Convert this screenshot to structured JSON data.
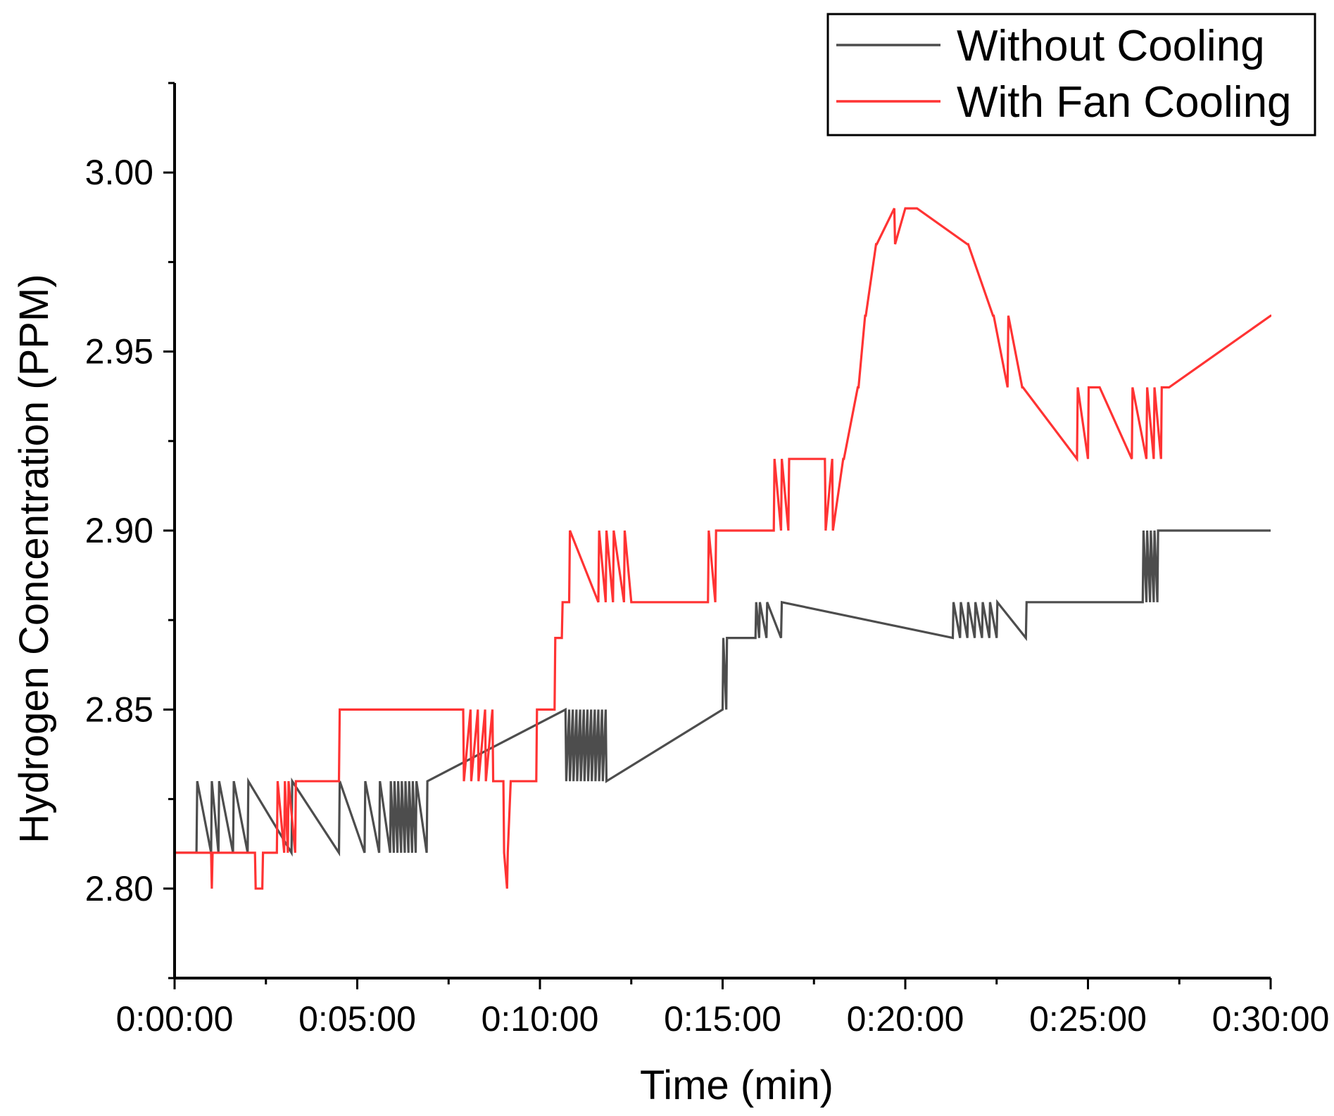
{
  "chart_data": {
    "type": "line",
    "title": "",
    "xlabel": "Time (min)",
    "ylabel": "Hydrogen Concentration (PPM)",
    "xlim": [
      0,
      30
    ],
    "ylim": [
      2.775,
      3.025
    ],
    "x_ticks": [
      0,
      5,
      10,
      15,
      20,
      25,
      30
    ],
    "x_tick_labels": [
      "0:00:00",
      "0:05:00",
      "0:10:00",
      "0:15:00",
      "0:20:00",
      "0:25:00",
      "0:30:00"
    ],
    "y_ticks": [
      2.8,
      2.85,
      2.9,
      2.95,
      3.0
    ],
    "y_tick_labels": [
      "2.80",
      "2.85",
      "2.90",
      "2.95",
      "3.00"
    ],
    "grid": false,
    "legend_position": "top-right",
    "series": [
      {
        "name": "Without Cooling",
        "color": "#4d4d4d",
        "x": [
          0,
          0.6,
          0.62,
          1.0,
          1.02,
          1.2,
          1.22,
          1.6,
          1.62,
          2.0,
          2.02,
          3.2,
          3.22,
          4.5,
          4.52,
          5.2,
          5.22,
          5.6,
          5.62,
          5.9,
          5.92,
          6.0,
          6.02,
          6.1,
          6.12,
          6.2,
          6.22,
          6.3,
          6.32,
          6.4,
          6.42,
          6.5,
          6.52,
          6.6,
          6.62,
          6.9,
          6.92,
          10.7,
          10.72,
          10.8,
          10.82,
          10.9,
          10.92,
          11.0,
          11.02,
          11.1,
          11.12,
          11.2,
          11.22,
          11.3,
          11.32,
          11.4,
          11.42,
          11.5,
          11.52,
          11.6,
          11.62,
          11.7,
          11.72,
          11.8,
          11.82,
          15.0,
          15.02,
          15.1,
          15.12,
          15.9,
          15.92,
          16.0,
          16.02,
          16.2,
          16.22,
          16.6,
          16.62,
          21.3,
          21.32,
          21.5,
          21.52,
          21.7,
          21.72,
          21.9,
          21.92,
          22.1,
          22.12,
          22.3,
          22.32,
          22.5,
          22.52,
          23.3,
          23.32,
          26.5,
          26.52,
          26.6,
          26.62,
          26.7,
          26.72,
          26.8,
          26.82,
          26.9,
          26.92,
          30.0
        ],
        "y": [
          2.81,
          2.81,
          2.83,
          2.81,
          2.83,
          2.81,
          2.83,
          2.81,
          2.83,
          2.81,
          2.83,
          2.81,
          2.83,
          2.81,
          2.83,
          2.81,
          2.83,
          2.81,
          2.83,
          2.81,
          2.83,
          2.81,
          2.83,
          2.81,
          2.83,
          2.81,
          2.83,
          2.81,
          2.83,
          2.81,
          2.83,
          2.81,
          2.83,
          2.81,
          2.83,
          2.81,
          2.83,
          2.85,
          2.83,
          2.85,
          2.83,
          2.85,
          2.83,
          2.85,
          2.83,
          2.85,
          2.83,
          2.85,
          2.83,
          2.85,
          2.83,
          2.85,
          2.83,
          2.85,
          2.83,
          2.85,
          2.83,
          2.85,
          2.83,
          2.85,
          2.83,
          2.85,
          2.87,
          2.85,
          2.87,
          2.87,
          2.88,
          2.87,
          2.88,
          2.87,
          2.88,
          2.87,
          2.88,
          2.87,
          2.88,
          2.87,
          2.88,
          2.87,
          2.88,
          2.87,
          2.88,
          2.87,
          2.88,
          2.87,
          2.88,
          2.87,
          2.88,
          2.87,
          2.88,
          2.88,
          2.9,
          2.88,
          2.9,
          2.88,
          2.9,
          2.88,
          2.9,
          2.88,
          2.9,
          2.9
        ]
      },
      {
        "name": "With Fan Cooling",
        "color": "#ff3333",
        "x": [
          0,
          1.0,
          1.02,
          1.04,
          2.2,
          2.22,
          2.4,
          2.42,
          2.8,
          2.82,
          3.0,
          3.02,
          3.1,
          3.12,
          3.3,
          3.32,
          4.5,
          4.52,
          7.9,
          7.92,
          8.1,
          8.12,
          8.3,
          8.32,
          8.5,
          8.52,
          8.7,
          8.72,
          9.0,
          9.02,
          9.1,
          9.12,
          9.2,
          9.9,
          9.92,
          10.4,
          10.42,
          10.6,
          10.62,
          10.8,
          10.82,
          11.6,
          11.62,
          11.8,
          11.82,
          12.0,
          12.02,
          12.3,
          12.32,
          12.5,
          12.52,
          12.8,
          12.82,
          14.6,
          14.62,
          14.8,
          14.82,
          16.4,
          16.42,
          16.6,
          16.62,
          16.8,
          16.82,
          17.8,
          17.82,
          18.0,
          18.02,
          18.3,
          18.32,
          18.7,
          18.72,
          18.9,
          18.92,
          19.2,
          19.22,
          19.7,
          19.72,
          20.0,
          20.02,
          20.3,
          20.32,
          21.7,
          21.72,
          22.4,
          22.42,
          22.8,
          22.82,
          23.2,
          23.22,
          24.7,
          24.72,
          25.0,
          25.02,
          25.3,
          25.32,
          26.2,
          26.22,
          26.6,
          26.62,
          26.8,
          26.82,
          27.0,
          27.02,
          27.2,
          27.22,
          30.0,
          30.02
        ],
        "y": [
          2.81,
          2.81,
          2.8,
          2.81,
          2.81,
          2.8,
          2.8,
          2.81,
          2.81,
          2.83,
          2.81,
          2.83,
          2.81,
          2.83,
          2.81,
          2.83,
          2.83,
          2.85,
          2.85,
          2.83,
          2.85,
          2.83,
          2.85,
          2.83,
          2.85,
          2.83,
          2.85,
          2.83,
          2.83,
          2.81,
          2.8,
          2.81,
          2.83,
          2.83,
          2.85,
          2.85,
          2.87,
          2.87,
          2.88,
          2.88,
          2.9,
          2.88,
          2.9,
          2.88,
          2.9,
          2.88,
          2.9,
          2.88,
          2.9,
          2.88,
          2.88,
          2.88,
          2.88,
          2.88,
          2.9,
          2.88,
          2.9,
          2.9,
          2.92,
          2.9,
          2.92,
          2.9,
          2.92,
          2.92,
          2.9,
          2.92,
          2.9,
          2.92,
          2.92,
          2.94,
          2.94,
          2.96,
          2.96,
          2.98,
          2.98,
          2.99,
          2.98,
          2.99,
          2.99,
          2.99,
          2.99,
          2.98,
          2.98,
          2.96,
          2.96,
          2.94,
          2.96,
          2.94,
          2.94,
          2.92,
          2.94,
          2.92,
          2.94,
          2.94,
          2.94,
          2.92,
          2.94,
          2.92,
          2.94,
          2.92,
          2.94,
          2.92,
          2.94,
          2.94,
          2.94,
          2.96,
          2.96
        ]
      }
    ]
  }
}
